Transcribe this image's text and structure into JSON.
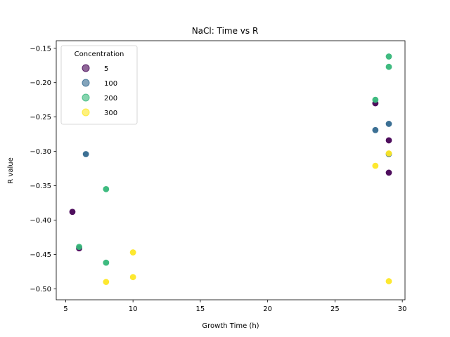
{
  "chart_data": {
    "type": "scatter",
    "title": "NaCl: Time vs R",
    "xlabel": "Growth Time (h)",
    "ylabel": "R value",
    "xlim": [
      4.3,
      30.2
    ],
    "ylim": [
      -0.516,
      -0.139
    ],
    "xticks": [
      5,
      10,
      15,
      20,
      25,
      30
    ],
    "xtick_labels": [
      "5",
      "10",
      "15",
      "20",
      "25",
      "30"
    ],
    "yticks": [
      -0.5,
      -0.45,
      -0.4,
      -0.35,
      -0.3,
      -0.25,
      -0.2,
      -0.15
    ],
    "ytick_labels": [
      "−0.50",
      "−0.45",
      "−0.40",
      "−0.35",
      "−0.30",
      "−0.25",
      "−0.20",
      "−0.15"
    ],
    "grid": false,
    "legend": {
      "title": "Concentration",
      "placement": "top-left"
    },
    "series": [
      {
        "name": "5",
        "color": "#440154",
        "points": [
          [
            5.5,
            -0.388
          ],
          [
            6.0,
            -0.441
          ],
          [
            28.0,
            -0.23
          ],
          [
            29.0,
            -0.284
          ],
          [
            29.0,
            -0.331
          ]
        ]
      },
      {
        "name": "100",
        "color": "#31688e",
        "points": [
          [
            6.5,
            -0.304
          ],
          [
            28.0,
            -0.269
          ],
          [
            29.0,
            -0.26
          ],
          [
            29.0,
            -0.304
          ]
        ]
      },
      {
        "name": "200",
        "color": "#35b779",
        "points": [
          [
            6.0,
            -0.439
          ],
          [
            8.0,
            -0.355
          ],
          [
            8.0,
            -0.462
          ],
          [
            28.0,
            -0.225
          ],
          [
            29.0,
            -0.162
          ],
          [
            29.0,
            -0.177
          ]
        ]
      },
      {
        "name": "300",
        "color": "#fde725",
        "points": [
          [
            8.0,
            -0.49
          ],
          [
            10.0,
            -0.447
          ],
          [
            10.0,
            -0.483
          ],
          [
            28.0,
            -0.321
          ],
          [
            29.0,
            -0.303
          ],
          [
            29.0,
            -0.489
          ]
        ]
      }
    ]
  }
}
